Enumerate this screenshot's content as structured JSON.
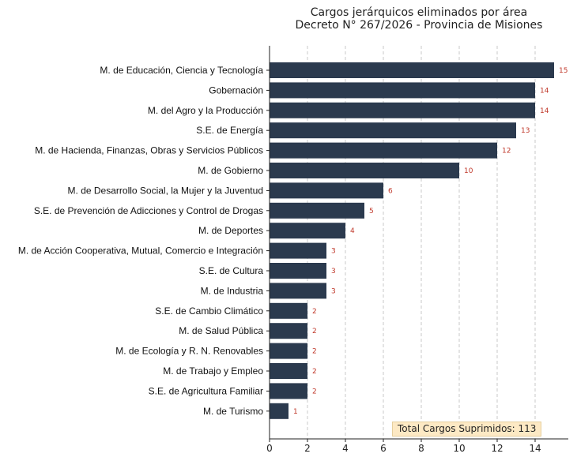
{
  "chart_data": {
    "type": "bar",
    "orientation": "horizontal",
    "title": "Cargos jerárquicos eliminados por área",
    "subtitle": "Decreto N° 267/2026 - Provincia de Misiones",
    "categories": [
      "M. de Educación, Ciencia y Tecnología",
      "Gobernación",
      "M. del Agro y la Producción",
      "S.E. de Energía",
      "M. de Hacienda, Finanzas, Obras y Servicios Públicos",
      "M. de Gobierno",
      "M. de Desarrollo Social, la Mujer y la Juventud",
      "S.E. de Prevención de Adicciones y Control de Drogas",
      "M. de Deportes",
      "M. de Acción Cooperativa, Mutual, Comercio e Integración",
      "S.E. de Cultura",
      "M. de Industria",
      "S.E. de Cambio Climático",
      "M. de Salud Pública",
      "M. de Ecología y R. N. Renovables",
      "M. de Trabajo y Empleo",
      "S.E. de Agricultura Familiar",
      "M. de Turismo"
    ],
    "values": [
      15,
      14,
      14,
      13,
      12,
      10,
      6,
      5,
      4,
      3,
      3,
      3,
      2,
      2,
      2,
      2,
      2,
      1
    ],
    "xticks": [
      0,
      2,
      4,
      6,
      8,
      10,
      12,
      14
    ],
    "xlim": [
      0,
      15.75
    ],
    "grid": "x dashed",
    "bar_color": "#2b3a4e",
    "label_color": "#c0392b",
    "annotation": "Total Cargos Suprimidos: 113"
  }
}
